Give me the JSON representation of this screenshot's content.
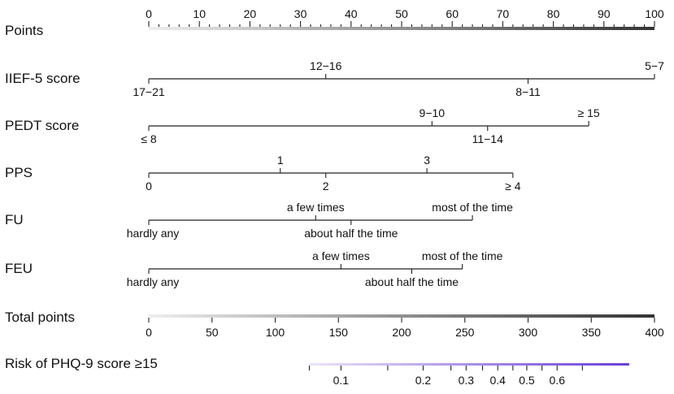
{
  "chart_data": {
    "type": "nomogram",
    "title": "",
    "points_scale": {
      "label": "Points",
      "range": [
        0,
        100
      ],
      "major_ticks": [
        0,
        10,
        20,
        30,
        40,
        50,
        60,
        70,
        80,
        90,
        100
      ],
      "minor_step": 2,
      "gradient": [
        "#eeeeee",
        "#333333"
      ]
    },
    "variables": [
      {
        "name": "IIEF-5 score",
        "levels": [
          {
            "label": "17−21",
            "points": 0,
            "side": "below"
          },
          {
            "label": "12−16",
            "points": 35,
            "side": "above"
          },
          {
            "label": "8−11",
            "points": 75,
            "side": "below"
          },
          {
            "label": "5−7",
            "points": 100,
            "side": "above"
          }
        ]
      },
      {
        "name": "PEDT score",
        "levels": [
          {
            "label": "≤ 8",
            "points": 0,
            "side": "below"
          },
          {
            "label": "9−10",
            "points": 56,
            "side": "above"
          },
          {
            "label": "11−14",
            "points": 67,
            "side": "below"
          },
          {
            "label": "≥ 15",
            "points": 87,
            "side": "above"
          }
        ]
      },
      {
        "name": "PPS",
        "levels": [
          {
            "label": "0",
            "points": 0,
            "side": "below"
          },
          {
            "label": "1",
            "points": 26,
            "side": "above"
          },
          {
            "label": "2",
            "points": 35,
            "side": "below"
          },
          {
            "label": "3",
            "points": 55,
            "side": "above"
          },
          {
            "label": "≥ 4",
            "points": 72,
            "side": "below"
          }
        ]
      },
      {
        "name": "FU",
        "levels": [
          {
            "label": "hardly any",
            "points": 0,
            "side": "below"
          },
          {
            "label": "a few times",
            "points": 33,
            "side": "above"
          },
          {
            "label": "about half the time",
            "points": 40,
            "side": "below"
          },
          {
            "label": "most of the time",
            "points": 64,
            "side": "above"
          }
        ]
      },
      {
        "name": "FEU",
        "levels": [
          {
            "label": "hardly any",
            "points": 0,
            "side": "below"
          },
          {
            "label": "a few times",
            "points": 38,
            "side": "above"
          },
          {
            "label": "about half the time",
            "points": 52,
            "side": "below"
          },
          {
            "label": "most of the time",
            "points": 62,
            "side": "above"
          }
        ]
      }
    ],
    "total_points_scale": {
      "label": "Total points",
      "range": [
        0,
        400
      ],
      "major_ticks": [
        0,
        50,
        100,
        150,
        200,
        250,
        300,
        350,
        400
      ],
      "gradient": [
        "#eeeeee",
        "#333333"
      ]
    },
    "risk_scale": {
      "label": "Risk of PHQ-9 score ≥15",
      "total_points_range": [
        127,
        380
      ],
      "ticks": [
        {
          "label": "0.1",
          "total_points": 152
        },
        {
          "label": "0.2",
          "total_points": 217
        },
        {
          "label": "0.3",
          "total_points": 251
        },
        {
          "label": "0.4",
          "total_points": 276
        },
        {
          "label": "0.5",
          "total_points": 299
        },
        {
          "label": "0.6",
          "total_points": 323
        }
      ],
      "minor_ticks_total_points": [
        127,
        189,
        239,
        264,
        288,
        311,
        343
      ],
      "gradient": [
        "#ebe4f8",
        "#6a3fd8"
      ]
    }
  }
}
